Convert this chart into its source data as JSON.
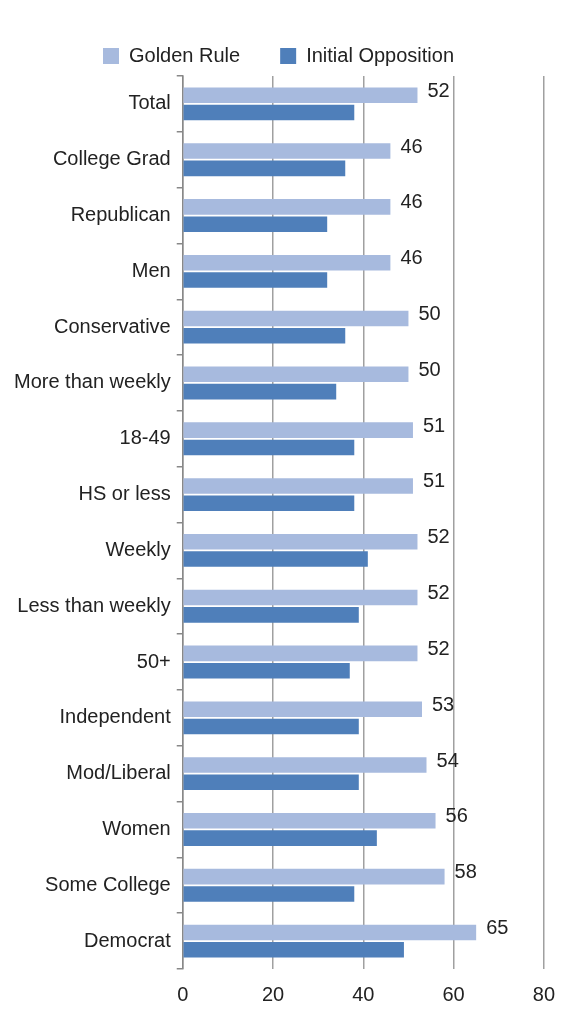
{
  "chart_data": {
    "type": "bar",
    "orientation": "horizontal",
    "categories": [
      "Total",
      "College Grad",
      "Republican",
      "Men",
      "Conservative",
      "More than weekly",
      "18-49",
      "HS or less",
      "Weekly",
      "Less than weekly",
      "50+",
      "Independent",
      "Mod/Liberal",
      "Women",
      "Some College",
      "Democrat"
    ],
    "series": [
      {
        "name": "Golden Rule",
        "color": "#a7bade",
        "values": [
          52,
          46,
          46,
          46,
          50,
          50,
          51,
          51,
          52,
          52,
          52,
          53,
          54,
          56,
          58,
          65
        ],
        "value_labels": [
          "52",
          "46",
          "46",
          "46",
          "50",
          "50",
          "51",
          "51",
          "52",
          "52",
          "52",
          "53",
          "54",
          "56",
          "58",
          "65"
        ]
      },
      {
        "name": "Initial Opposition",
        "color": "#4f7fba",
        "values": [
          38,
          36,
          32,
          32,
          36,
          34,
          38,
          38,
          41,
          39,
          37,
          39,
          39,
          43,
          38,
          49
        ]
      }
    ],
    "xlim": [
      0,
      80
    ],
    "xticks": [
      0,
      20,
      40,
      60,
      80
    ],
    "grid": "x",
    "legend": "top"
  }
}
